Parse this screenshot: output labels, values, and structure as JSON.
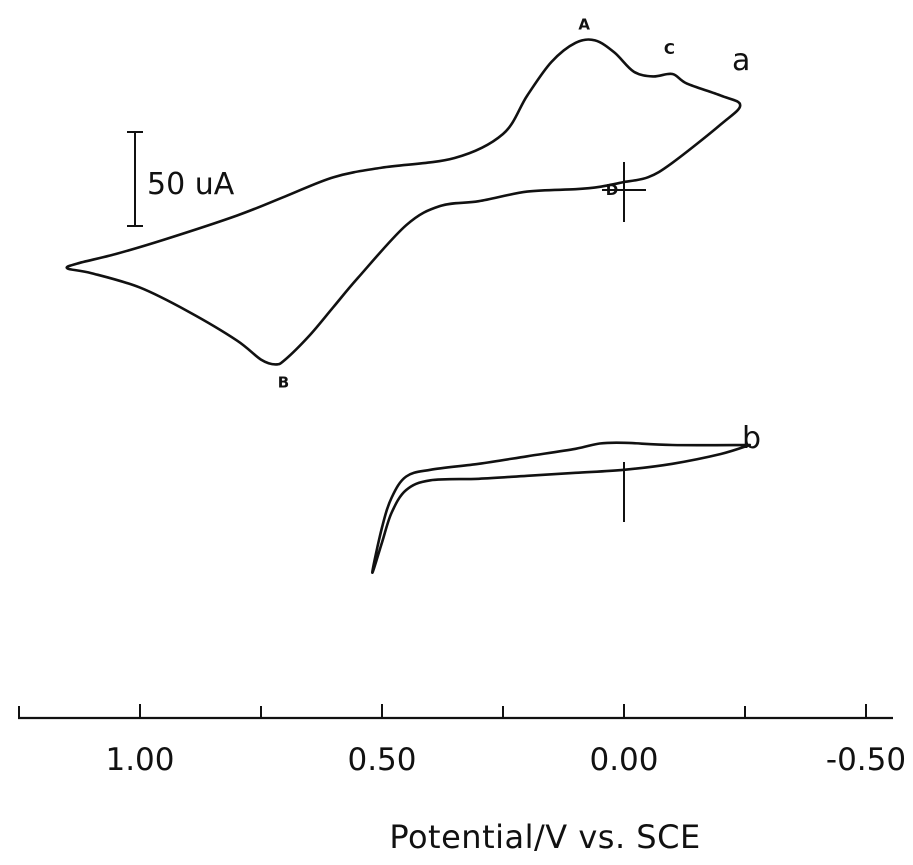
{
  "chart_data": {
    "type": "line",
    "xlabel": "Potential/V  vs. SCE",
    "ylabel": "",
    "xlim": [
      1.25,
      -0.55
    ],
    "x_ticks": [
      {
        "value": 1.0,
        "label": "1.00"
      },
      {
        "value": 0.5,
        "label": "0.50"
      },
      {
        "value": 0.0,
        "label": "0.00"
      },
      {
        "value": -0.5,
        "label": "-0.50"
      }
    ],
    "x_minor_ticks": [
      1.25,
      0.75,
      0.25,
      -0.25
    ],
    "current_scale": {
      "label": "50 uA",
      "value_uA": 50
    },
    "series": [
      {
        "name": "a",
        "closed": true,
        "points": [
          [
            0.0,
            0.0
          ],
          [
            0.05,
            -1
          ],
          [
            0.1,
            -1.5
          ],
          [
            0.2,
            -2
          ],
          [
            0.3,
            -4
          ],
          [
            0.38,
            -5
          ],
          [
            0.45,
            -9
          ],
          [
            0.55,
            -20
          ],
          [
            0.6,
            -26
          ],
          [
            0.65,
            -32
          ],
          [
            0.7,
            -37
          ],
          [
            0.72,
            -38
          ],
          [
            0.75,
            -37
          ],
          [
            0.8,
            -33
          ],
          [
            0.9,
            -27
          ],
          [
            1.0,
            -22
          ],
          [
            1.1,
            -19
          ],
          [
            1.15,
            -18
          ],
          [
            1.13,
            -17
          ],
          [
            1.05,
            -15
          ],
          [
            0.95,
            -12
          ],
          [
            0.8,
            -7
          ],
          [
            0.7,
            -3
          ],
          [
            0.6,
            1
          ],
          [
            0.5,
            3
          ],
          [
            0.35,
            5
          ],
          [
            0.25,
            10
          ],
          [
            0.2,
            18
          ],
          [
            0.15,
            25
          ],
          [
            0.1,
            29
          ],
          [
            0.06,
            29.5
          ],
          [
            0.02,
            27
          ],
          [
            -0.02,
            23
          ],
          [
            -0.06,
            22
          ],
          [
            -0.1,
            22.5
          ],
          [
            -0.13,
            20.5
          ],
          [
            -0.2,
            18
          ],
          [
            -0.24,
            16
          ],
          [
            -0.2,
            12
          ],
          [
            -0.1,
            4
          ],
          [
            -0.05,
            1
          ],
          [
            0.0,
            0.0
          ]
        ]
      },
      {
        "name": "b",
        "closed": true,
        "points": [
          [
            -0.26,
            6
          ],
          [
            -0.1,
            6
          ],
          [
            0.0,
            6.3
          ],
          [
            0.05,
            6.2
          ],
          [
            0.1,
            5.5
          ],
          [
            0.2,
            4.5
          ],
          [
            0.3,
            3.5
          ],
          [
            0.4,
            2.7
          ],
          [
            0.45,
            1.8
          ],
          [
            0.48,
            -1
          ],
          [
            0.5,
            -5
          ],
          [
            0.52,
            -11
          ],
          [
            0.5,
            -7
          ],
          [
            0.48,
            -3
          ],
          [
            0.45,
            0
          ],
          [
            0.4,
            1.3
          ],
          [
            0.3,
            1.5
          ],
          [
            0.2,
            1.9
          ],
          [
            0.1,
            2.3
          ],
          [
            0.0,
            2.7
          ],
          [
            -0.1,
            3.5
          ],
          [
            -0.2,
            4.8
          ],
          [
            -0.26,
            6
          ]
        ]
      }
    ],
    "annotations": [
      {
        "text": "A",
        "series": "a",
        "x": 0.07,
        "y": 29.5
      },
      {
        "text": "B",
        "series": "a",
        "x": 0.72,
        "y": -38
      },
      {
        "text": "C",
        "series": "a",
        "x": -0.1,
        "y": 22.5
      },
      {
        "text": "D",
        "series": "a",
        "x": 0.0,
        "y": 0.0
      }
    ]
  }
}
